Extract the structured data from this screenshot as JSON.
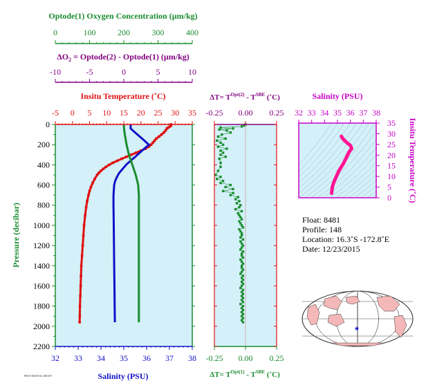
{
  "colors": {
    "panel_bg": "#d4f0f8",
    "oxygen": "#1a8c2e",
    "delta_o2": "#800080",
    "temperature": "#e01010",
    "salinity": "#1010c8",
    "dT_axis": "#1a8c2e",
    "ts_diagram": "#c800c8",
    "ts_curve": "#ff1493",
    "map_land": "#f5b8b8",
    "map_ocean": "#ffffff"
  },
  "axes_titles": {
    "oxygen": "Optode(1) Oxygen Concentration (µm/kg)",
    "delta_o2_prefix": "ΔO",
    "delta_o2_sub": "2",
    "delta_o2_rest": " = Optode(2) - Optode(1)    (µm/kg)",
    "temperature": "Insitu Temperature (˚C)",
    "salinity_bottom": "Salinity (PSU)",
    "pressure": "Pressure (decibar)",
    "dT_top_a": "ΔT= T",
    "dT_top_sup1": "Opt(2)",
    "dT_top_b": " - T",
    "dT_top_sup2": "SBE",
    "dT_top_c": " (˚C)",
    "dT_bottom_a": "ΔT= T",
    "dT_bottom_sup1": "Opt(1)",
    "dT_bottom_b": " - T",
    "dT_bottom_sup2": "SBE",
    "dT_bottom_c": " (˚C)",
    "ts_salinity": "Salinity (PSU)",
    "ts_temperature": "Insitu Temperature (˚C)"
  },
  "float_info": {
    "float": "Float:  8481",
    "profile": "Profile:  148",
    "location": "Location:  16.3˚S  -172.8˚E",
    "date": "Date:  12/23/2015"
  },
  "corner_stamp": "PROVISIONAL DRAFT",
  "chart_data": [
    {
      "type": "line",
      "name": "main-profile",
      "y_axis": {
        "label": "Pressure (decibar)",
        "range": [
          0,
          2200
        ],
        "reversed": true,
        "ticks": [
          0,
          200,
          400,
          600,
          800,
          1000,
          1200,
          1400,
          1600,
          1800,
          2000,
          2200
        ]
      },
      "temperature_axis": {
        "range": [
          -5,
          35
        ],
        "ticks": [
          -5,
          0,
          5,
          10,
          15,
          20,
          25,
          30,
          35
        ]
      },
      "salinity_axis": {
        "range": [
          32,
          38
        ],
        "ticks": [
          32,
          33,
          34,
          35,
          36,
          37,
          38
        ]
      },
      "oxygen_axis": {
        "range": [
          0,
          400
        ],
        "ticks": [
          0,
          100,
          200,
          300,
          400
        ]
      },
      "delta_o2_axis": {
        "range": [
          -10,
          10
        ],
        "ticks": [
          -10,
          -5,
          0,
          5,
          10
        ]
      },
      "temperature": {
        "p": [
          0,
          10,
          20,
          30,
          40,
          60,
          80,
          100,
          120,
          140,
          160,
          180,
          200,
          220,
          240,
          260,
          280,
          300,
          320,
          340,
          360,
          380,
          400,
          420,
          440,
          460,
          480,
          500,
          540,
          580,
          620,
          660,
          700,
          760,
          820,
          900,
          1000,
          1100,
          1200,
          1300,
          1400,
          1500,
          1600,
          1700,
          1800,
          1900,
          1960
        ],
        "v": [
          28.8,
          28.8,
          28.5,
          28.0,
          27.6,
          27.2,
          26.7,
          26.0,
          25.3,
          24.5,
          24.0,
          23.5,
          23.0,
          22.3,
          21.3,
          20.0,
          18.6,
          17.2,
          15.8,
          14.4,
          13.1,
          11.8,
          10.7,
          9.8,
          9.0,
          8.3,
          7.7,
          7.2,
          6.5,
          5.9,
          5.4,
          5.0,
          4.7,
          4.3,
          4.0,
          3.7,
          3.4,
          3.2,
          3.0,
          2.8,
          2.6,
          2.5,
          2.4,
          2.3,
          2.2,
          2.15,
          2.1
        ]
      },
      "salinity": {
        "p": [
          0,
          20,
          40,
          60,
          80,
          100,
          120,
          140,
          160,
          180,
          200,
          220,
          240,
          260,
          280,
          300,
          320,
          340,
          360,
          380,
          400,
          440,
          480,
          520,
          560,
          600,
          700,
          800,
          1000,
          1200,
          1400,
          1600,
          1800,
          1960
        ],
        "v": [
          35.3,
          35.3,
          35.3,
          35.4,
          35.5,
          35.6,
          35.7,
          35.8,
          35.9,
          36.0,
          36.1,
          36.0,
          35.9,
          35.8,
          35.7,
          35.6,
          35.5,
          35.4,
          35.3,
          35.2,
          35.1,
          34.95,
          34.8,
          34.7,
          34.62,
          34.58,
          34.55,
          34.55,
          34.56,
          34.57,
          34.58,
          34.59,
          34.6,
          34.61
        ]
      },
      "oxygen": {
        "p": [
          0,
          50,
          100,
          200,
          300,
          400,
          500,
          600,
          700,
          800,
          1000,
          1200,
          1400,
          1600,
          1800,
          1960
        ],
        "v": [
          200,
          201,
          203,
          208,
          215,
          225,
          235,
          242,
          244,
          244,
          244,
          244,
          244,
          244,
          244,
          244
        ]
      }
    },
    {
      "type": "scatter",
      "name": "delta-t",
      "x_axis_top": {
        "range": [
          -0.25,
          0.25
        ],
        "ticks": [
          -0.25,
          0,
          0.25
        ],
        "tick_labels": [
          "-0.25",
          "0.00",
          "0.25"
        ]
      },
      "x_axis_bottom": {
        "range": [
          -0.25,
          0.25
        ],
        "ticks": [
          -0.25,
          0,
          0.25
        ],
        "tick_labels": [
          "-0.25",
          "0.00",
          "0.25"
        ]
      },
      "points": {
        "p": [
          0,
          10,
          20,
          30,
          40,
          50,
          60,
          80,
          100,
          120,
          140,
          160,
          180,
          200,
          220,
          240,
          260,
          280,
          300,
          320,
          340,
          380,
          420,
          460,
          500,
          520,
          540,
          560,
          580,
          600,
          620,
          640,
          660,
          680,
          700,
          720,
          740,
          760,
          780,
          800,
          820,
          840,
          860,
          880,
          900,
          920,
          940,
          960,
          980,
          1000,
          1020,
          1040,
          1060,
          1080,
          1100,
          1120,
          1140,
          1160,
          1180,
          1200,
          1220,
          1240,
          1260,
          1280,
          1300,
          1320,
          1340,
          1360,
          1380,
          1400,
          1420,
          1440,
          1460,
          1480,
          1500,
          1520,
          1540,
          1560,
          1580,
          1600,
          1620,
          1640,
          1660,
          1680,
          1700,
          1720,
          1740,
          1760,
          1780,
          1800,
          1820,
          1840,
          1860,
          1880,
          1900,
          1920,
          1940,
          1960
        ],
        "v": [
          0.0,
          -0.01,
          -0.03,
          -0.2,
          -0.1,
          -0.21,
          -0.15,
          -0.12,
          -0.19,
          -0.22,
          -0.16,
          -0.23,
          -0.2,
          -0.18,
          -0.22,
          -0.15,
          -0.2,
          -0.18,
          -0.2,
          -0.16,
          -0.21,
          -0.2,
          -0.2,
          -0.22,
          -0.24,
          -0.2,
          -0.23,
          -0.18,
          -0.2,
          -0.12,
          -0.16,
          -0.1,
          -0.18,
          -0.1,
          -0.12,
          -0.06,
          -0.08,
          -0.05,
          -0.07,
          -0.04,
          -0.05,
          -0.08,
          -0.03,
          -0.06,
          -0.05,
          -0.04,
          -0.03,
          -0.05,
          -0.04,
          -0.03,
          -0.02,
          -0.05,
          -0.04,
          -0.03,
          -0.03,
          -0.04,
          -0.02,
          -0.04,
          -0.03,
          -0.02,
          -0.03,
          -0.04,
          -0.02,
          -0.03,
          -0.03,
          -0.02,
          -0.04,
          -0.03,
          -0.02,
          -0.03,
          -0.03,
          -0.02,
          -0.03,
          -0.04,
          -0.02,
          -0.03,
          -0.02,
          -0.03,
          -0.02,
          -0.03,
          -0.04,
          -0.02,
          -0.03,
          -0.02,
          -0.03,
          -0.02,
          -0.03,
          -0.02,
          -0.04,
          -0.02,
          -0.03,
          -0.02,
          -0.03,
          -0.02,
          -0.03,
          -0.02,
          -0.03,
          -0.02
        ]
      }
    },
    {
      "type": "line",
      "name": "ts-diagram",
      "x_axis": {
        "label": "Salinity (PSU)",
        "range": [
          32,
          38
        ],
        "ticks": [
          32,
          33,
          34,
          35,
          36,
          37,
          38
        ]
      },
      "y_axis": {
        "label": "Insitu Temperature (˚C)",
        "range": [
          0,
          35
        ],
        "ticks": [
          0,
          5,
          10,
          15,
          20,
          25,
          30,
          35
        ]
      },
      "curve": {
        "s": [
          34.55,
          34.56,
          34.58,
          34.6,
          34.65,
          34.7,
          34.8,
          34.95,
          35.1,
          35.3,
          35.5,
          35.7,
          35.9,
          36.1,
          36.0,
          35.8,
          35.6,
          35.4,
          35.3
        ],
        "t": [
          2.1,
          3.0,
          4.0,
          5.0,
          6.0,
          7.0,
          8.5,
          10.5,
          12.5,
          14.5,
          16.5,
          19.0,
          21.5,
          23.0,
          24.5,
          25.5,
          26.5,
          27.8,
          28.8
        ]
      }
    }
  ]
}
